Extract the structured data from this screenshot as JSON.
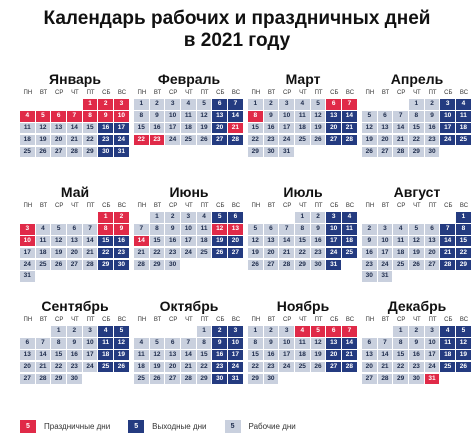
{
  "title": {
    "line1": "Календарь рабочих и праздничных дней",
    "line2": "в 2021 году"
  },
  "weekdays": [
    "ПН",
    "ВТ",
    "СР",
    "ЧТ",
    "ПТ",
    "СБ",
    "ВС"
  ],
  "colors": {
    "holiday": "#e02a48",
    "weekend": "#243b80",
    "workday": "#c9d0de"
  },
  "months": [
    {
      "name": "Январь",
      "offset": 4,
      "days": 31,
      "holidays": [
        1,
        2,
        3,
        4,
        5,
        6,
        7,
        8,
        9,
        10
      ],
      "weekends": [
        16,
        17,
        23,
        24,
        30,
        31
      ]
    },
    {
      "name": "Февраль",
      "offset": 0,
      "days": 28,
      "holidays": [
        21,
        22,
        23
      ],
      "weekends": [
        6,
        7,
        13,
        14,
        20,
        27,
        28
      ]
    },
    {
      "name": "Март",
      "offset": 0,
      "days": 31,
      "holidays": [
        6,
        7,
        8
      ],
      "weekends": [
        13,
        14,
        20,
        21,
        27,
        28
      ]
    },
    {
      "name": "Апрель",
      "offset": 3,
      "days": 30,
      "holidays": [],
      "weekends": [
        3,
        4,
        10,
        11,
        17,
        18,
        24,
        25
      ]
    },
    {
      "name": "Май",
      "offset": 5,
      "days": 31,
      "holidays": [
        1,
        2,
        3,
        8,
        9,
        10
      ],
      "weekends": [
        15,
        16,
        22,
        23,
        29,
        30
      ]
    },
    {
      "name": "Июнь",
      "offset": 1,
      "days": 30,
      "holidays": [
        12,
        13,
        14
      ],
      "weekends": [
        5,
        6,
        19,
        20,
        26,
        27
      ]
    },
    {
      "name": "Июль",
      "offset": 3,
      "days": 31,
      "holidays": [],
      "weekends": [
        3,
        4,
        10,
        11,
        17,
        18,
        24,
        25,
        31
      ]
    },
    {
      "name": "Август",
      "offset": 6,
      "days": 31,
      "holidays": [],
      "weekends": [
        1,
        7,
        8,
        14,
        15,
        21,
        22,
        28,
        29
      ]
    },
    {
      "name": "Сентябрь",
      "offset": 2,
      "days": 30,
      "holidays": [],
      "weekends": [
        4,
        5,
        11,
        12,
        18,
        19,
        25,
        26
      ]
    },
    {
      "name": "Октябрь",
      "offset": 4,
      "days": 31,
      "holidays": [],
      "weekends": [
        2,
        3,
        9,
        10,
        16,
        17,
        23,
        24,
        30,
        31
      ]
    },
    {
      "name": "Ноябрь",
      "offset": 0,
      "days": 30,
      "holidays": [
        4,
        5,
        6,
        7
      ],
      "weekends": [
        13,
        14,
        20,
        21,
        27,
        28
      ]
    },
    {
      "name": "Декабрь",
      "offset": 2,
      "days": 31,
      "holidays": [
        31
      ],
      "weekends": [
        4,
        5,
        11,
        12,
        18,
        19,
        25,
        26
      ]
    }
  ],
  "legend": [
    {
      "num": "5",
      "label": "Праздничные дни",
      "type": "h"
    },
    {
      "num": "5",
      "label": "Выходные дни",
      "type": "o"
    },
    {
      "num": "5",
      "label": "Рабочие дни",
      "type": "w"
    }
  ]
}
